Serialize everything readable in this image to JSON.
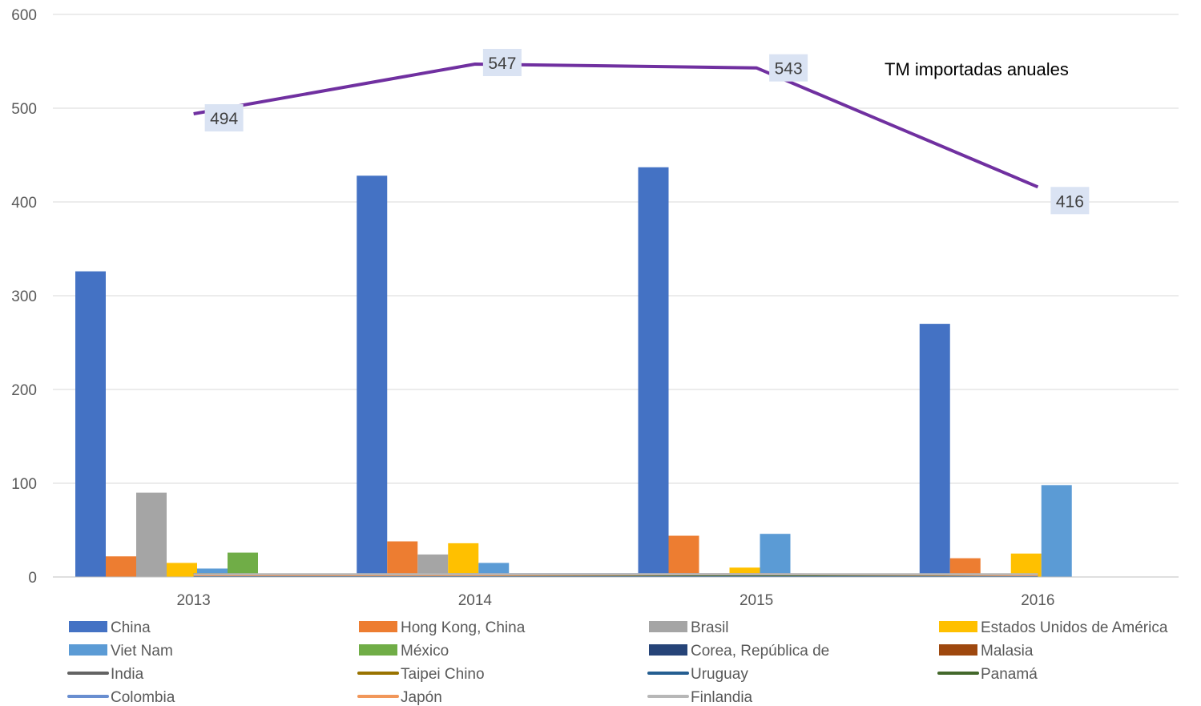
{
  "chart_data": {
    "type": "bar",
    "annotation": "TM importadas anuales",
    "categories": [
      "2013",
      "2014",
      "2015",
      "2016"
    ],
    "ylim": [
      0,
      600
    ],
    "yticks": [
      0,
      100,
      200,
      300,
      400,
      500,
      600
    ],
    "grid": true,
    "legend_position": "bottom",
    "bar_series": [
      {
        "name": "China",
        "color": "#4472C4",
        "values": [
          326,
          428,
          437,
          270
        ]
      },
      {
        "name": "Hong Kong, China",
        "color": "#ED7D31",
        "values": [
          22,
          38,
          44,
          20
        ]
      },
      {
        "name": "Brasil",
        "color": "#A5A5A5",
        "values": [
          90,
          24,
          0,
          0
        ]
      },
      {
        "name": "Estados Unidos de América",
        "color": "#FFC000",
        "values": [
          15,
          36,
          10,
          25
        ]
      },
      {
        "name": "Viet Nam",
        "color": "#5B9BD5",
        "values": [
          9,
          15,
          46,
          98
        ]
      },
      {
        "name": "México",
        "color": "#70AD47",
        "values": [
          26,
          0,
          0,
          0
        ]
      },
      {
        "name": "Corea, República de",
        "color": "#264478",
        "values": [
          0,
          0,
          0,
          0
        ]
      },
      {
        "name": "Malasia",
        "color": "#9E480E",
        "values": [
          0,
          0,
          0,
          0
        ]
      }
    ],
    "line_series": [
      {
        "name": "India",
        "color": "#636363",
        "values": [
          3,
          2,
          2,
          2
        ]
      },
      {
        "name": "Taipei Chino",
        "color": "#997300",
        "values": [
          2,
          2,
          2,
          2
        ]
      },
      {
        "name": "Uruguay",
        "color": "#255E91",
        "values": [
          1,
          1,
          1,
          1
        ]
      },
      {
        "name": "Panamá",
        "color": "#43682B",
        "values": [
          3,
          2,
          2,
          2
        ]
      },
      {
        "name": "Colombia",
        "color": "#698ED0",
        "values": [
          2,
          3,
          3,
          2
        ]
      },
      {
        "name": "Japón",
        "color": "#F1975A",
        "values": [
          2,
          2,
          3,
          2
        ]
      },
      {
        "name": "Finlandia",
        "color": "#B7B7B7",
        "values": [
          3,
          3,
          3,
          3
        ]
      }
    ],
    "total_series": {
      "color": "#7030A0",
      "values": [
        494,
        547,
        543,
        416
      ],
      "labels": [
        "494",
        "547",
        "543",
        "416"
      ],
      "label_bg": "#DAE3F3"
    }
  }
}
